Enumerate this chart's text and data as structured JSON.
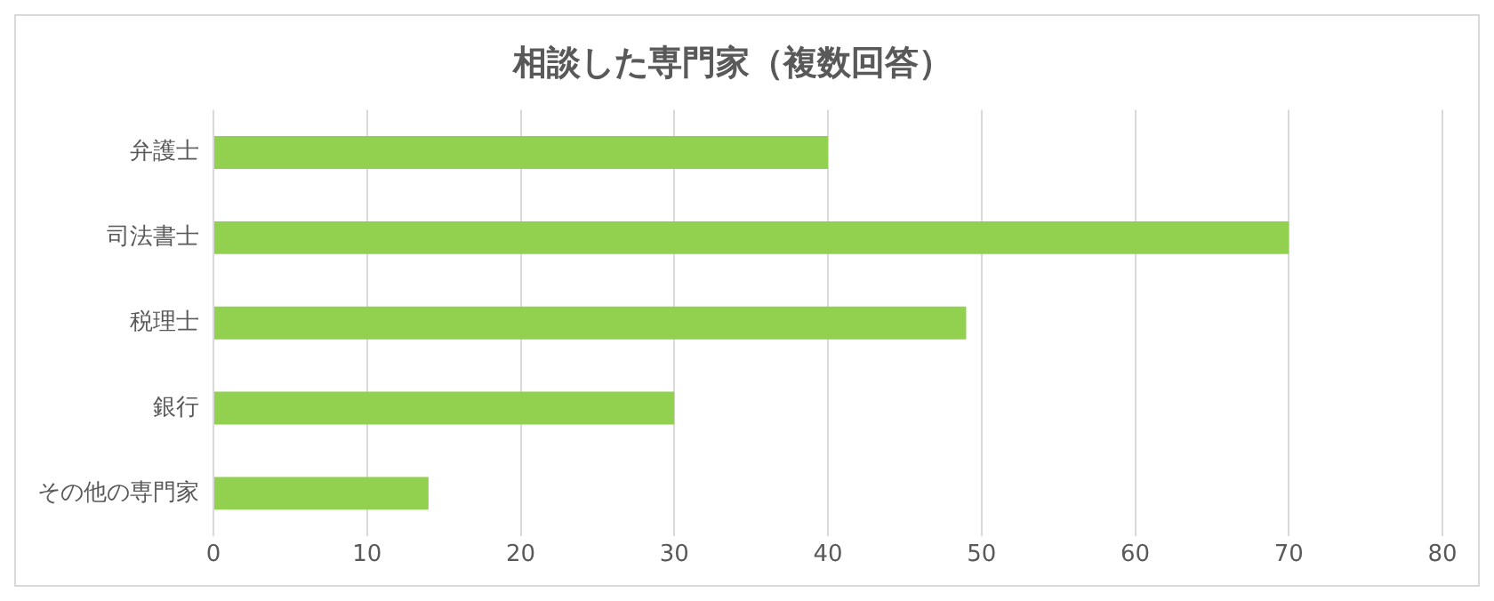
{
  "chart_data": {
    "type": "bar",
    "orientation": "horizontal",
    "title": "相談した専門家（複数回答）",
    "categories": [
      "弁護士",
      "司法書士",
      "税理士",
      "銀行",
      "その他の専門家"
    ],
    "values": [
      40,
      70,
      49,
      30,
      14
    ],
    "color": "#92d050",
    "xlim": [
      0,
      80
    ],
    "xticks": [
      0,
      10,
      20,
      30,
      40,
      50,
      60,
      70,
      80
    ],
    "grid": "x",
    "legend": false
  }
}
